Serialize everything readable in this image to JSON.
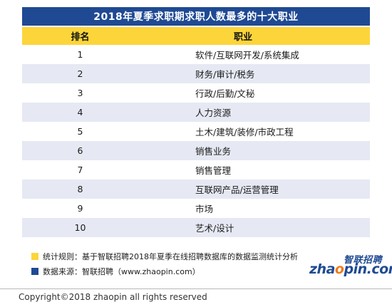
{
  "title": "2018年夏季求职期求职人数最多的十大职业",
  "table": {
    "headers": [
      "排名",
      "职业"
    ],
    "rows": [
      {
        "rank": "1",
        "job": "软件/互联网开发/系统集成"
      },
      {
        "rank": "2",
        "job": "财务/审计/税务"
      },
      {
        "rank": "3",
        "job": "行政/后勤/文秘"
      },
      {
        "rank": "4",
        "job": "人力资源"
      },
      {
        "rank": "5",
        "job": "土木/建筑/装修/市政工程"
      },
      {
        "rank": "6",
        "job": "销售业务"
      },
      {
        "rank": "7",
        "job": "销售管理"
      },
      {
        "rank": "8",
        "job": "互联网产品/运营管理"
      },
      {
        "rank": "9",
        "job": "市场"
      },
      {
        "rank": "10",
        "job": "艺术/设计"
      }
    ]
  },
  "notes": {
    "rule": "统计规则：基于智联招聘2018年夏季在线招聘数据库的数据监测统计分析",
    "source": "数据来源：智联招聘（www.zhaopin.com）"
  },
  "logo": {
    "cn": "智联招聘",
    "en_prefix": "zha",
    "en_o": "o",
    "en_suffix": "pin.com"
  },
  "colors": {
    "title_bg": "#1f4a93",
    "header_bg": "#fcd53a",
    "stripe": "#e6e9f3",
    "logo_accent": "#f07a1c"
  },
  "copyright": "Copyright©2018 zhaopin all rights reserved"
}
